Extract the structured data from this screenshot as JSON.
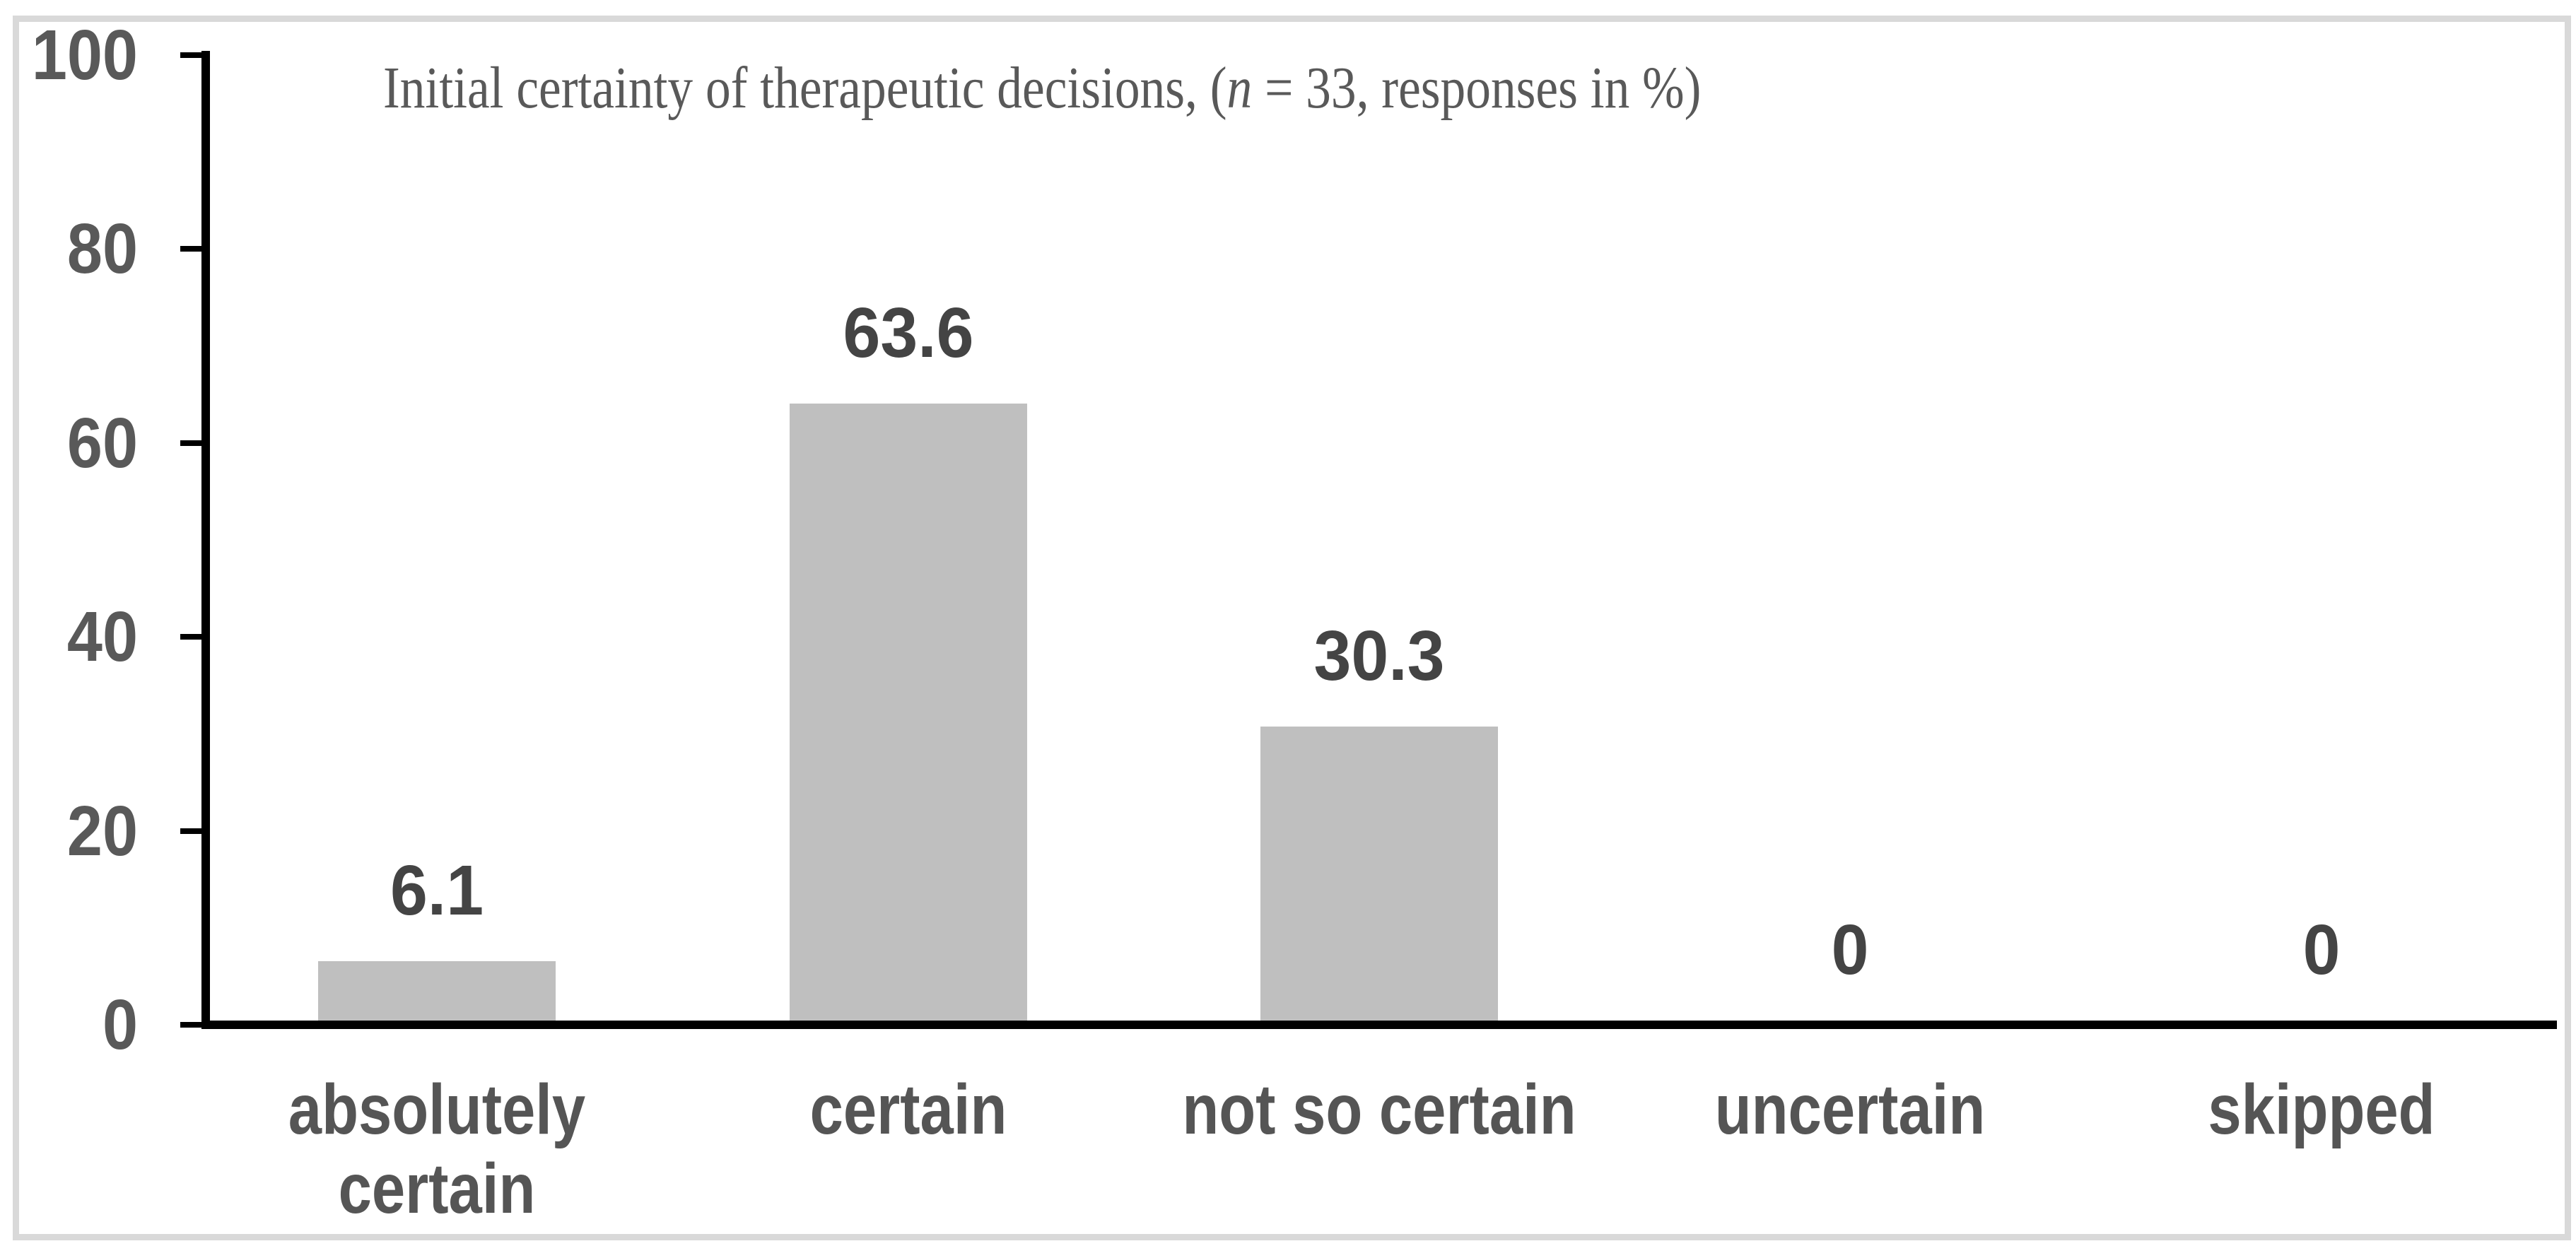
{
  "chart_data": {
    "type": "bar",
    "bar_orientation": "vertical",
    "title_full": "Initial certainty of therapeutic decisions, (n = 33, responses in %)",
    "title_parts": {
      "prefix": "Initial certainty of therapeutic decisions, (",
      "italic": "n",
      "suffix": " = 33, responses in %)"
    },
    "categories": [
      "absolutely certain",
      "certain",
      "not so certain",
      "uncertain",
      "skipped"
    ],
    "category_lines": [
      [
        "absolutely",
        "certain"
      ],
      [
        "certain"
      ],
      [
        "not so certain"
      ],
      [
        "uncertain"
      ],
      [
        "skipped"
      ]
    ],
    "values": [
      6.1,
      63.6,
      30.3,
      0,
      0
    ],
    "value_labels": [
      "6.1",
      "63.6",
      "30.3",
      "0",
      "0"
    ],
    "yticks": [
      0,
      20,
      40,
      60,
      80,
      100
    ],
    "ylim": [
      0,
      100
    ],
    "xlabel": "",
    "ylabel": "",
    "grid": false,
    "legend": false
  },
  "colors": {
    "bar": "#bfbfbf",
    "axis": "#000000",
    "tick_label": "#595959",
    "category_label": "#555555",
    "value_label": "#444444",
    "title": "#595959",
    "frame_border": "#d9d9d9",
    "background": "#ffffff"
  }
}
